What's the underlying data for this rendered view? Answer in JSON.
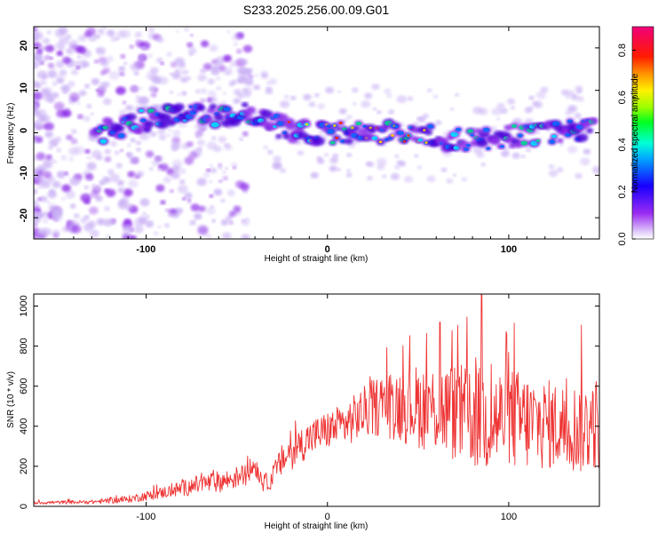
{
  "title": "S233.2025.256.00.09.G01",
  "colors": {
    "snr_line": "#ee3333",
    "blob_low": "#c9b0f5",
    "blob_mid": "#8b2ce8",
    "blob_high": "#4a00d8"
  },
  "chart_data": [
    {
      "type": "heatmap",
      "name": "spectrogram",
      "xlabel": "Height of straight line (km)",
      "ylabel": "Frequency (Hz)",
      "xlim": [
        -162,
        150
      ],
      "ylim": [
        -25,
        25
      ],
      "xticks": [
        -100,
        0,
        100
      ],
      "xtick_labels": [
        "-100",
        "0",
        "100"
      ],
      "yticks": [
        20,
        10,
        0,
        -10,
        -20
      ],
      "ytick_labels": [
        "20",
        "10",
        "0",
        "-10",
        "-20"
      ],
      "colorbar": {
        "label": "Normalized spectral amplitude",
        "range": [
          0,
          0.9
        ],
        "ticks": [
          0.0,
          0.2,
          0.4,
          0.6,
          0.8
        ],
        "tick_labels": [
          "0.0",
          "0.2",
          "0.4",
          "0.6",
          "0.8"
        ]
      },
      "ridge": {
        "x": [
          -125,
          -110,
          -95,
          -80,
          -65,
          -50,
          -40,
          -30,
          -20,
          0,
          20,
          40,
          60,
          80,
          100,
          120,
          145
        ],
        "y": [
          0,
          2,
          3.5,
          4.5,
          4.5,
          4,
          4.5,
          2,
          0.5,
          0,
          0,
          0,
          -1,
          -2,
          -1,
          0,
          1
        ]
      }
    },
    {
      "type": "line",
      "name": "snr",
      "xlabel": "Height of straight line (km)",
      "ylabel": "SNR (10 * v/v)",
      "xlim": [
        -162,
        150
      ],
      "ylim": [
        0,
        1060
      ],
      "xticks": [
        -100,
        0,
        100
      ],
      "xtick_labels": [
        "-100",
        "0",
        "100"
      ],
      "yticks": [
        0,
        200,
        400,
        600,
        800,
        1000
      ],
      "ytick_labels": [
        "0",
        "200",
        "400",
        "600",
        "800",
        "1000"
      ],
      "envelope": {
        "x": [
          -162,
          -130,
          -110,
          -90,
          -70,
          -55,
          -45,
          -40,
          -35,
          -30,
          -25,
          -20,
          -10,
          0,
          10,
          20,
          30,
          40,
          60,
          70,
          80,
          90,
          100,
          110,
          120,
          130,
          140,
          150
        ],
        "mean": [
          18,
          22,
          35,
          70,
          110,
          130,
          160,
          210,
          110,
          150,
          230,
          270,
          340,
          380,
          410,
          470,
          510,
          510,
          490,
          470,
          440,
          430,
          440,
          420,
          410,
          400,
          390,
          420
        ],
        "spread": [
          8,
          10,
          18,
          30,
          50,
          55,
          55,
          55,
          45,
          60,
          80,
          90,
          90,
          95,
          110,
          130,
          160,
          190,
          230,
          250,
          260,
          270,
          260,
          250,
          230,
          220,
          230,
          240
        ]
      },
      "peaks": [
        {
          "x": 85,
          "y": 1060
        },
        {
          "x": 77,
          "y": 945
        },
        {
          "x": 140,
          "y": 905
        },
        {
          "x": 62,
          "y": 920
        },
        {
          "x": 103,
          "y": 915
        }
      ]
    }
  ]
}
